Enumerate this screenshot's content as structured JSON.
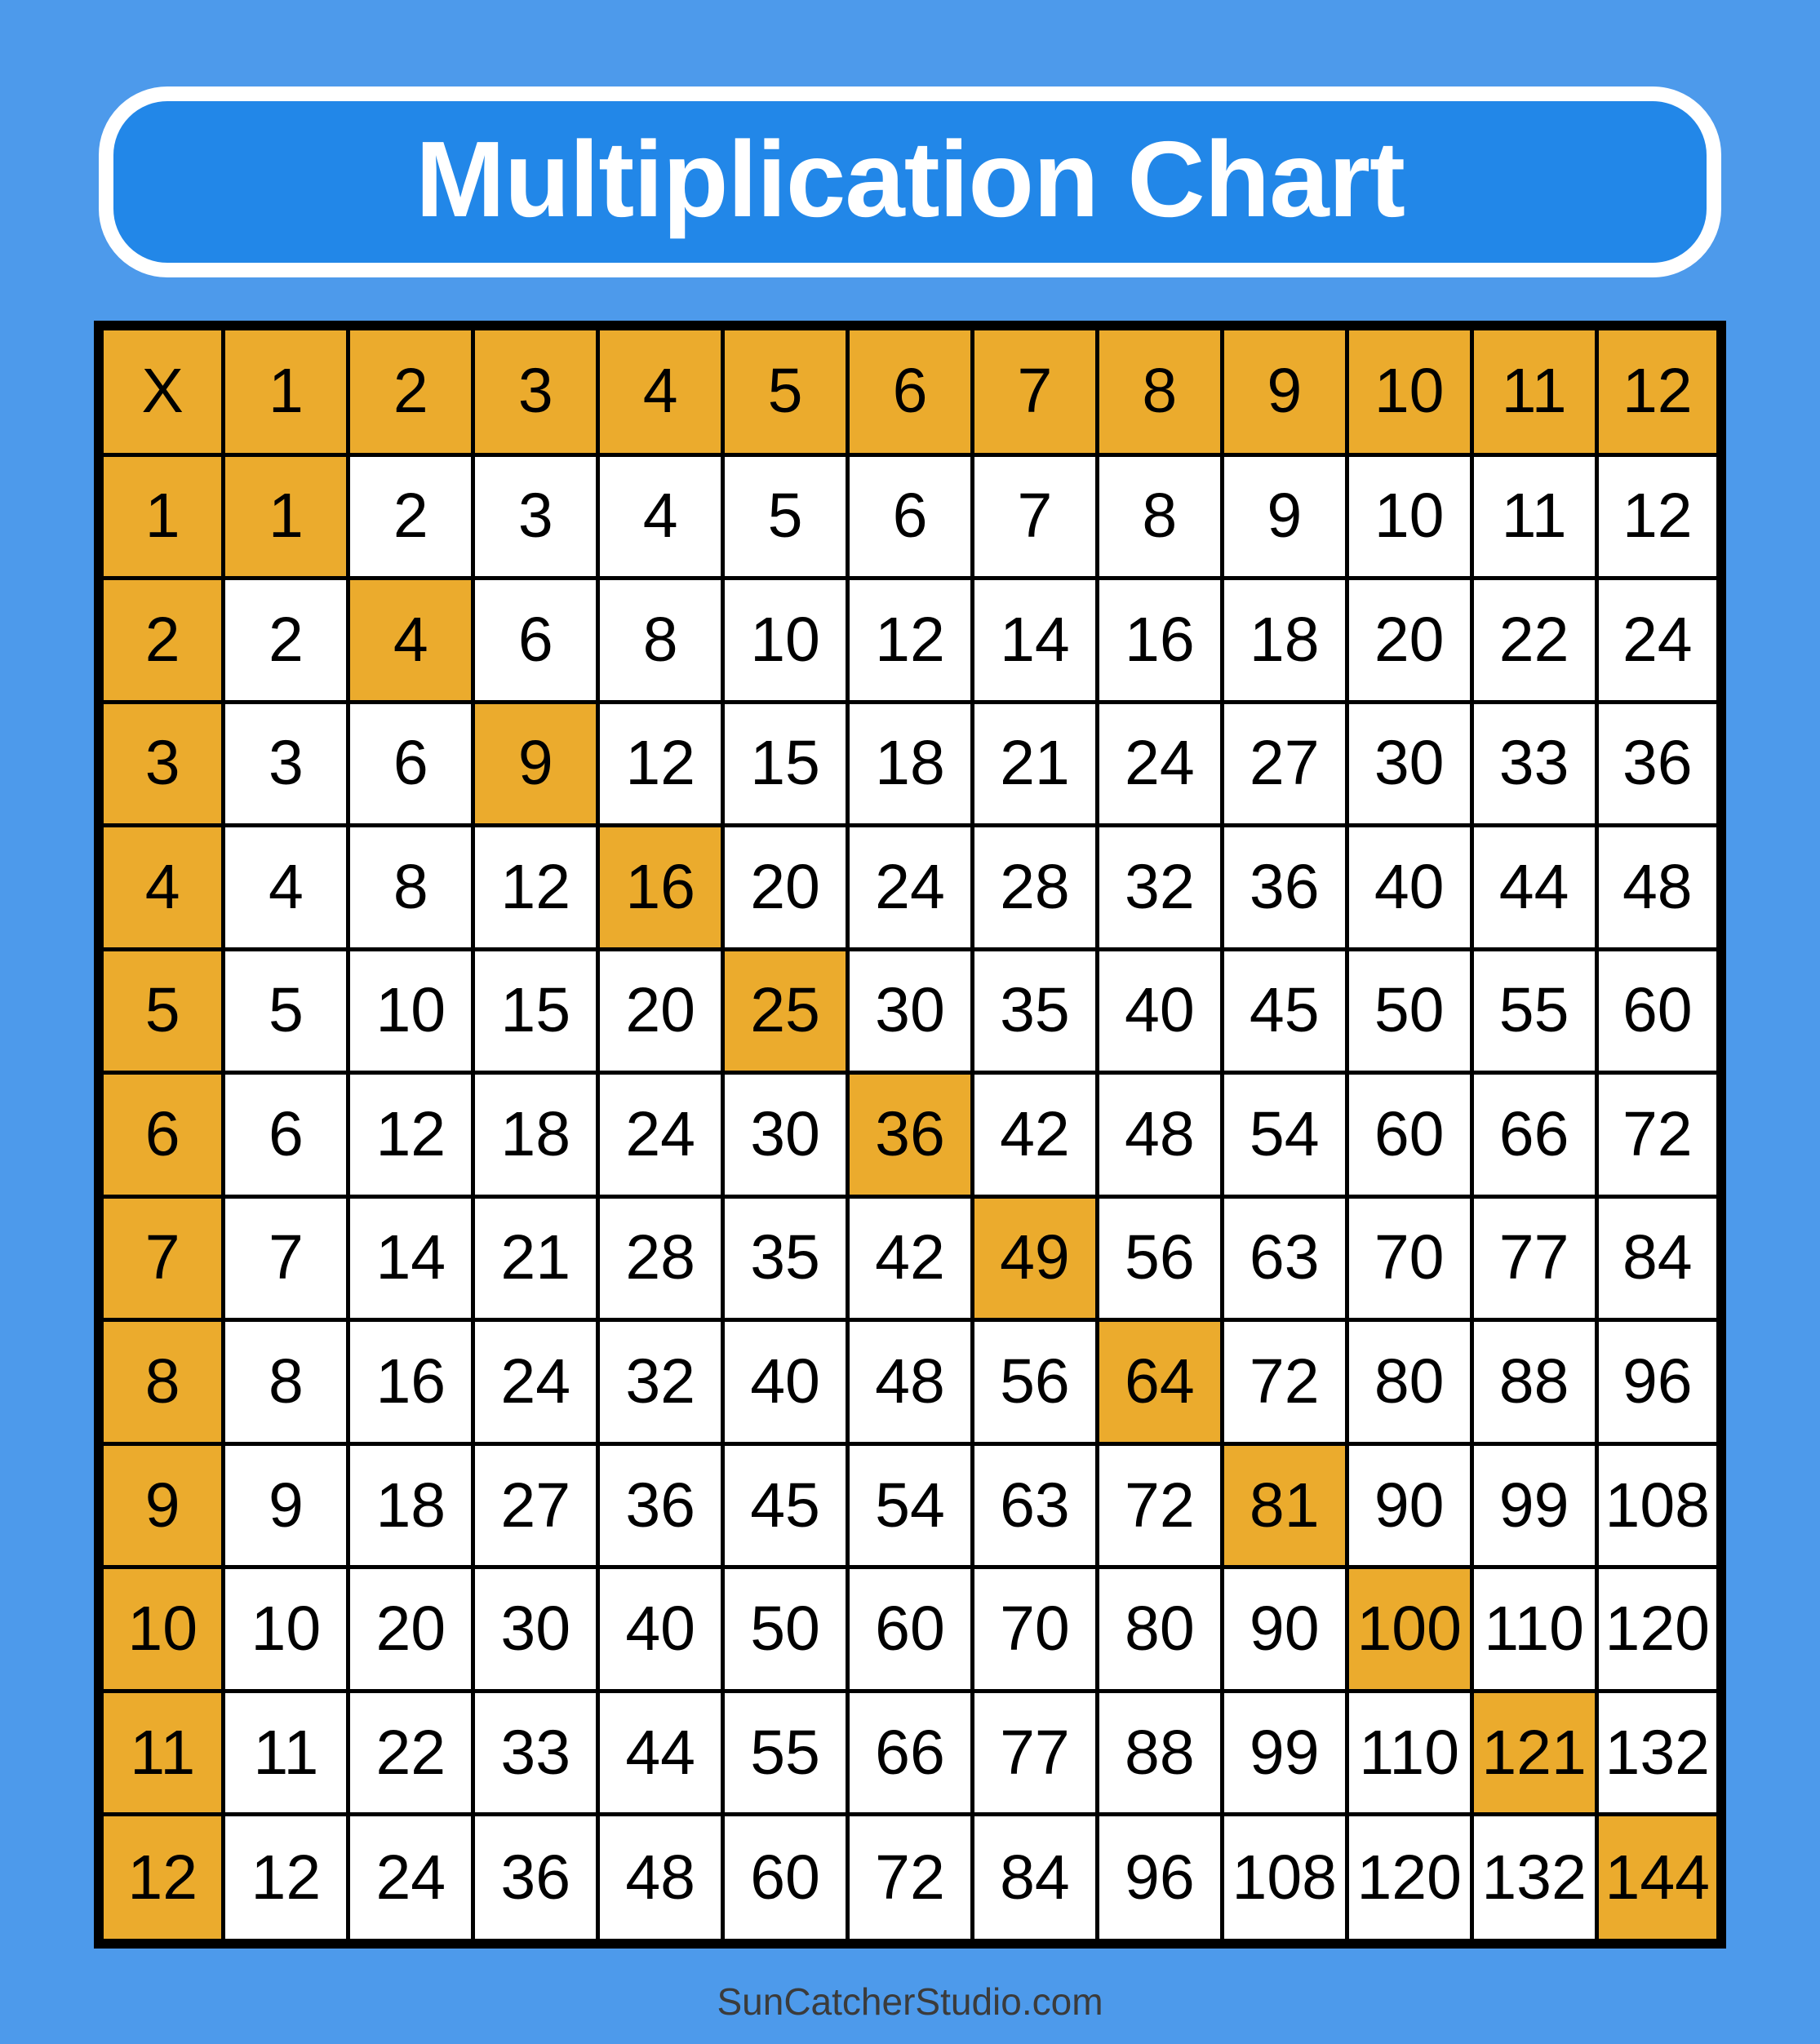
{
  "colors": {
    "page_background": "#4D9AEB",
    "banner_fill": "#2287E8",
    "banner_border": "#FFFFFF",
    "banner_text": "#FFFFFF",
    "header_cell_fill": "#EBAB2D",
    "diagonal_cell_fill": "#EBAB2D",
    "cell_fill": "#FFFFFF",
    "grid_line": "#000000",
    "cell_text": "#000000",
    "footer_text": "#3B3B3B"
  },
  "banner": {
    "title": "Multiplication Chart"
  },
  "footer": {
    "text": "SunCatcherStudio.com"
  },
  "chart_data": {
    "type": "table",
    "title": "Multiplication Chart",
    "corner_label": "X",
    "column_headers": [
      "1",
      "2",
      "3",
      "4",
      "5",
      "6",
      "7",
      "8",
      "9",
      "10",
      "11",
      "12"
    ],
    "row_headers": [
      "1",
      "2",
      "3",
      "4",
      "5",
      "6",
      "7",
      "8",
      "9",
      "10",
      "11",
      "12"
    ],
    "rows": [
      [
        1,
        2,
        3,
        4,
        5,
        6,
        7,
        8,
        9,
        10,
        11,
        12
      ],
      [
        2,
        4,
        6,
        8,
        10,
        12,
        14,
        16,
        18,
        20,
        22,
        24
      ],
      [
        3,
        6,
        9,
        12,
        15,
        18,
        21,
        24,
        27,
        30,
        33,
        36
      ],
      [
        4,
        8,
        12,
        16,
        20,
        24,
        28,
        32,
        36,
        40,
        44,
        48
      ],
      [
        5,
        10,
        15,
        20,
        25,
        30,
        35,
        40,
        45,
        50,
        55,
        60
      ],
      [
        6,
        12,
        18,
        24,
        30,
        36,
        42,
        48,
        54,
        60,
        66,
        72
      ],
      [
        7,
        14,
        21,
        28,
        35,
        42,
        49,
        56,
        63,
        70,
        77,
        84
      ],
      [
        8,
        16,
        24,
        32,
        40,
        48,
        56,
        64,
        72,
        80,
        88,
        96
      ],
      [
        9,
        18,
        27,
        36,
        45,
        54,
        63,
        72,
        81,
        90,
        99,
        108
      ],
      [
        10,
        20,
        30,
        40,
        50,
        60,
        70,
        80,
        90,
        100,
        110,
        120
      ],
      [
        11,
        22,
        33,
        44,
        55,
        66,
        77,
        88,
        99,
        110,
        121,
        132
      ],
      [
        12,
        24,
        36,
        48,
        60,
        72,
        84,
        96,
        108,
        120,
        132,
        144
      ]
    ],
    "highlight_note": "Header row, header column, and perfect-square diagonal cells (1,4,9,16,25,36,49,64,81,100,121,144) are filled gold",
    "layout": {
      "grid": "13x13 including header row and header column",
      "grid_lines": "on"
    }
  }
}
